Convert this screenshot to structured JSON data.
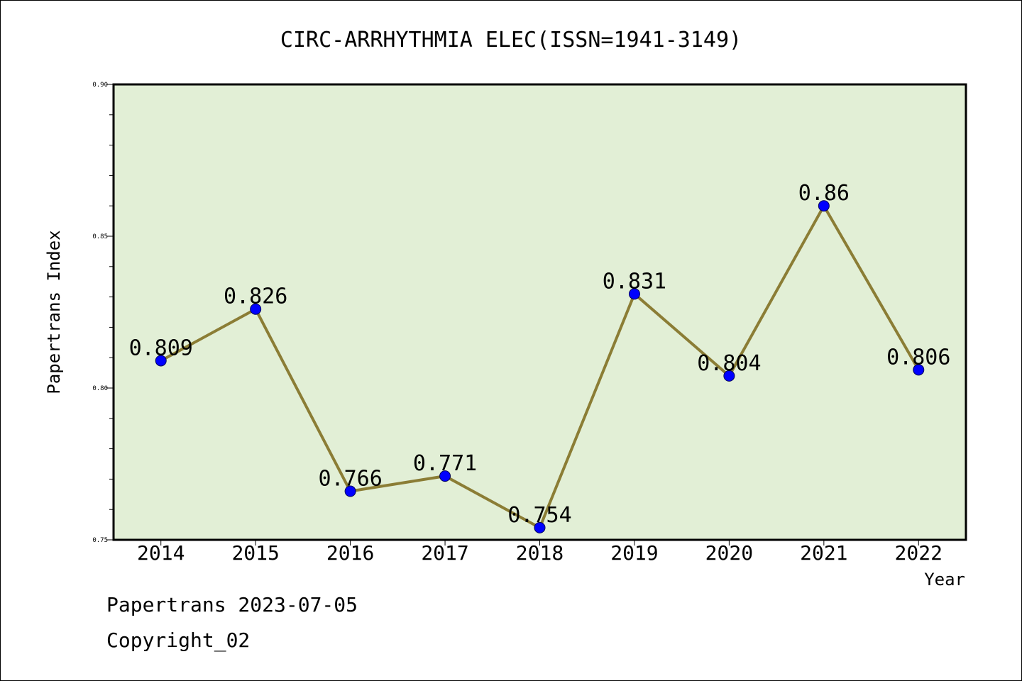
{
  "chart_data": {
    "type": "line",
    "title": "CIRC-ARRHYTHMIA ELEC(ISSN=1941-3149)",
    "xlabel": "Year",
    "ylabel": "Papertrans Index",
    "categories": [
      "2014",
      "2015",
      "2016",
      "2017",
      "2018",
      "2019",
      "2020",
      "2021",
      "2022"
    ],
    "values": [
      0.809,
      0.826,
      0.766,
      0.771,
      0.754,
      0.831,
      0.804,
      0.86,
      0.806
    ],
    "data_labels": [
      "0.809",
      "0.826",
      "0.766",
      "0.771",
      "0.754",
      "0.831",
      "0.804",
      "0.86",
      "0.806"
    ],
    "ylim": [
      0.75,
      0.9
    ],
    "y_ticks": [
      "0.75",
      "0.80",
      "0.85",
      "0.90"
    ],
    "y_tick_values": [
      0.75,
      0.8,
      0.85,
      0.9
    ],
    "grid": false,
    "colors": {
      "plot_background": "#e2efd6",
      "line": "#8b7d35",
      "marker": "#0000ff"
    }
  },
  "footer": {
    "line1": "Papertrans 2023-07-05",
    "line2": "Copyright_02"
  }
}
